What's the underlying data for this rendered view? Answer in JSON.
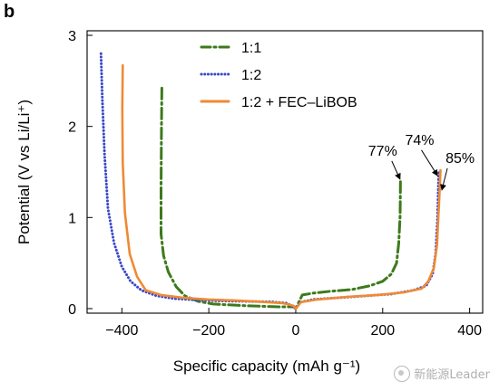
{
  "panel_label": "b",
  "watermark": "新能源Leader",
  "colors": {
    "s1": "#3d7a1c",
    "s2": "#3a47c9",
    "s3": "#ef8a35",
    "axis": "#000000"
  },
  "chart_data": {
    "type": "line",
    "xlabel": "Specific capacity (mAh g⁻¹)",
    "ylabel": "Potential (V vs Li/Li⁺)",
    "xlim": [
      -480,
      430
    ],
    "ylim": [
      -0.05,
      3.05
    ],
    "xticks": [
      -400,
      -200,
      0,
      200,
      400
    ],
    "yticks": [
      0,
      1,
      2,
      3
    ],
    "grid": false,
    "legend_position": "top-center",
    "series": [
      {
        "name": "1:1",
        "style": "dashdot",
        "x": [
          -308,
          -309,
          -310,
          -310,
          -304,
          -293,
          -275,
          -255,
          -225,
          -190,
          -150,
          -110,
          -70,
          -40,
          -15,
          -3,
          0,
          10,
          15,
          40,
          80,
          130,
          170,
          200,
          220,
          232,
          237,
          240,
          241
        ],
        "y": [
          2.42,
          1.9,
          1.3,
          0.82,
          0.58,
          0.4,
          0.24,
          0.14,
          0.08,
          0.05,
          0.04,
          0.03,
          0.025,
          0.02,
          0.02,
          0.02,
          0.0,
          0.1,
          0.15,
          0.17,
          0.19,
          0.21,
          0.25,
          0.3,
          0.38,
          0.5,
          0.72,
          1.02,
          1.42
        ]
      },
      {
        "name": "1:2",
        "style": "dotted",
        "x": [
          -448,
          -445,
          -440,
          -432,
          -418,
          -400,
          -380,
          -355,
          -320,
          -280,
          -230,
          -180,
          -120,
          -60,
          -20,
          0,
          10,
          40,
          100,
          160,
          220,
          270,
          300,
          315,
          322,
          326,
          328,
          329
        ],
        "y": [
          2.8,
          2.3,
          1.7,
          1.1,
          0.72,
          0.46,
          0.3,
          0.2,
          0.14,
          0.11,
          0.095,
          0.085,
          0.08,
          0.075,
          0.06,
          0.0,
          0.07,
          0.1,
          0.12,
          0.14,
          0.16,
          0.2,
          0.25,
          0.38,
          0.62,
          0.98,
          1.32,
          1.5
        ]
      },
      {
        "name": "1:2 + FEC–LiBOB",
        "style": "solid",
        "x": [
          -398,
          -399,
          -398,
          -393,
          -382,
          -365,
          -345,
          -310,
          -260,
          -200,
          -140,
          -80,
          -30,
          -5,
          0,
          12,
          50,
          120,
          190,
          250,
          290,
          305,
          318,
          325,
          328,
          331,
          333
        ],
        "y": [
          2.67,
          2.2,
          1.6,
          1.05,
          0.6,
          0.35,
          0.2,
          0.15,
          0.12,
          0.1,
          0.09,
          0.075,
          0.06,
          0.03,
          0.0,
          0.07,
          0.1,
          0.13,
          0.15,
          0.18,
          0.22,
          0.3,
          0.45,
          0.7,
          1.0,
          1.3,
          1.52
        ]
      }
    ],
    "annotations": [
      {
        "text": "77%",
        "x": 200,
        "y": 1.68,
        "arrow_to": [
          240,
          1.42
        ]
      },
      {
        "text": "74%",
        "x": 285,
        "y": 1.8,
        "arrow_to": [
          326,
          1.46
        ]
      },
      {
        "text": "85%",
        "x": 378,
        "y": 1.6,
        "arrow_to": [
          336,
          1.3
        ]
      }
    ]
  }
}
